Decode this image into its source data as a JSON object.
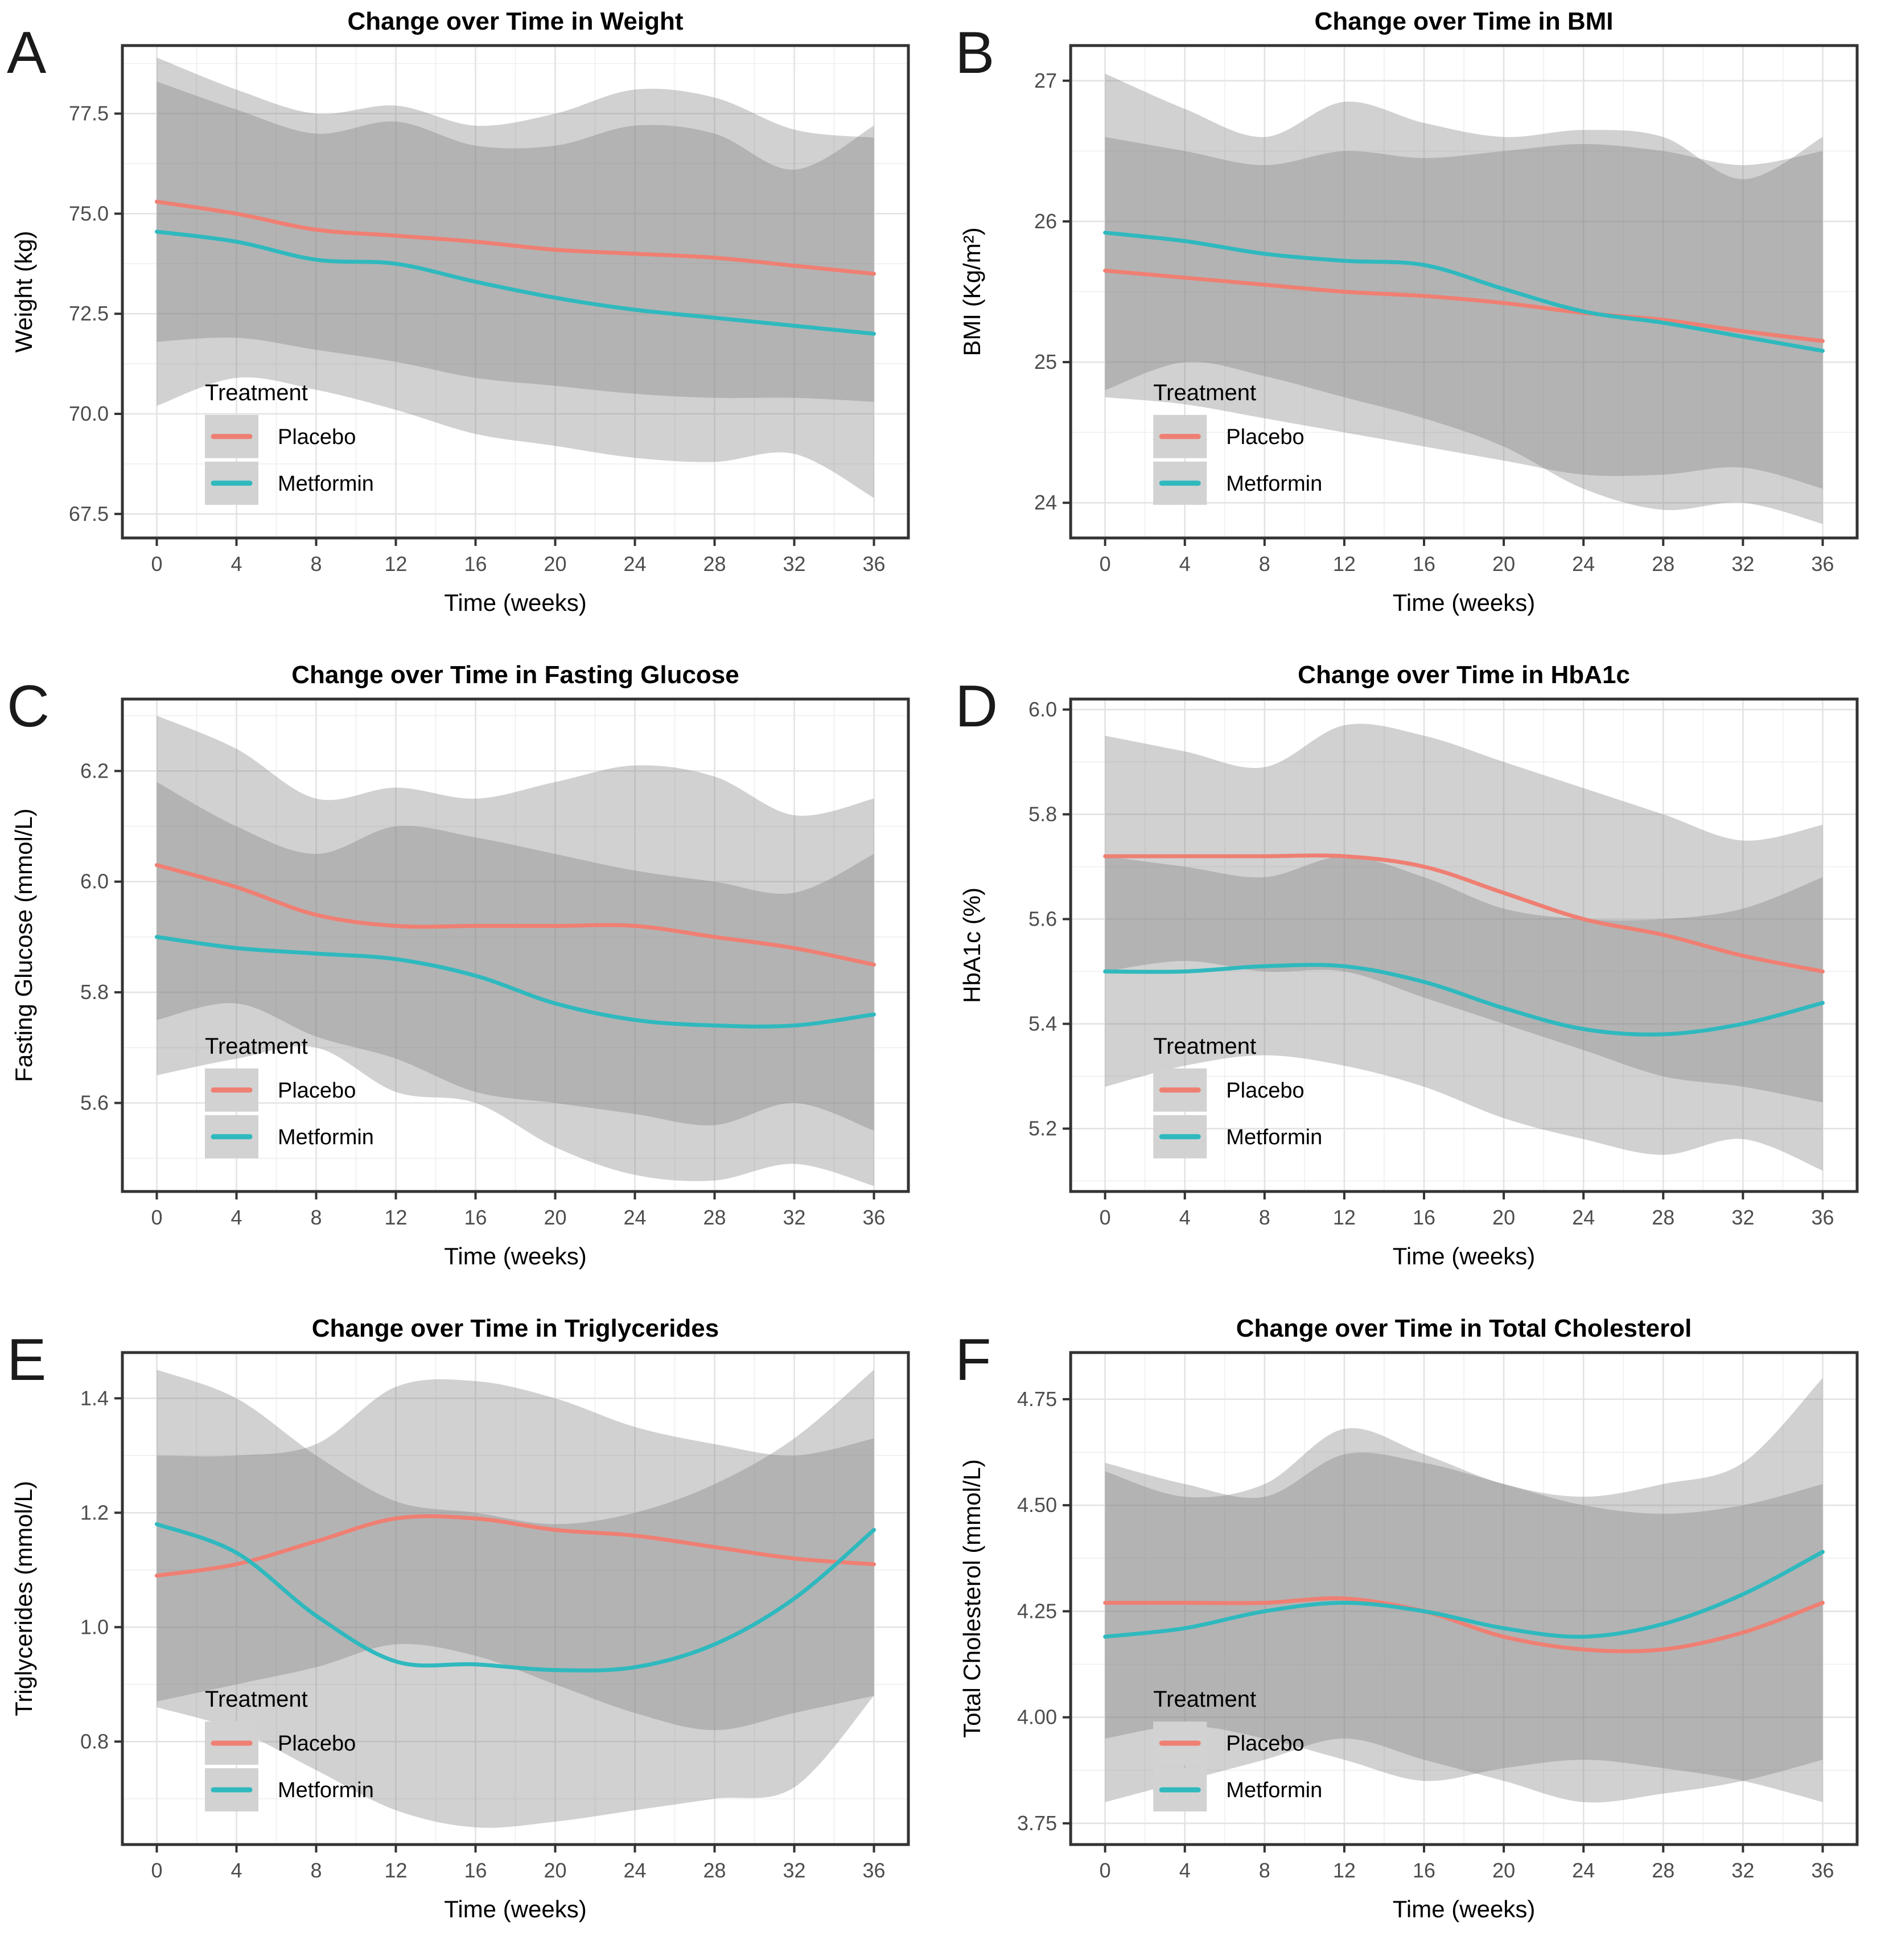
{
  "figure": {
    "type": "multi-panel-smooth-line-figure",
    "background": "#ffffff",
    "panel_border_color": "#333333",
    "grid_major_color": "#e3e3e3",
    "grid_minor_color": "#f0f0f0",
    "tick_label_color": "#4d4d4d",
    "ribbon_color": "#7f7f7f",
    "ribbon_opacity": 0.36
  },
  "legend": {
    "title": "Treatment",
    "key_fill": "#d2d2d2",
    "items": [
      {
        "label": "Placebo",
        "color": "#EF7F73"
      },
      {
        "label": "Metformin",
        "color": "#2FB9BE"
      }
    ]
  },
  "chart_data": [
    {
      "letter": "A",
      "type": "line",
      "title": "Change over Time in Weight",
      "xlabel": "Time (weeks)",
      "ylabel": "Weight (kg)",
      "x": [
        0,
        4,
        8,
        12,
        16,
        20,
        24,
        28,
        32,
        36
      ],
      "xtick_labels": [
        "0",
        "4",
        "8",
        "12",
        "16",
        "20",
        "24",
        "28",
        "32",
        "36"
      ],
      "ylim": [
        66.9,
        79.2
      ],
      "yticks": [
        67.5,
        70.0,
        72.5,
        75.0,
        77.5
      ],
      "ytick_labels": [
        "67.5",
        "70.0",
        "72.5",
        "75.0",
        "77.5"
      ],
      "legend_title": "Treatment",
      "series": [
        {
          "name": "Placebo",
          "color": "#EF7F73",
          "values": [
            75.3,
            75.0,
            74.6,
            74.45,
            74.3,
            74.1,
            74.0,
            73.9,
            73.7,
            73.5
          ],
          "lo": [
            71.8,
            71.9,
            71.6,
            71.3,
            70.9,
            70.7,
            70.5,
            70.4,
            70.4,
            70.3
          ],
          "hi": [
            78.9,
            78.1,
            77.5,
            77.7,
            77.2,
            77.5,
            78.1,
            77.9,
            77.1,
            76.9
          ]
        },
        {
          "name": "Metformin",
          "color": "#2FB9BE",
          "values": [
            74.55,
            74.3,
            73.85,
            73.75,
            73.3,
            72.9,
            72.6,
            72.4,
            72.2,
            72.0
          ],
          "lo": [
            70.2,
            70.9,
            70.6,
            70.1,
            69.5,
            69.2,
            68.9,
            68.8,
            69.0,
            67.9
          ],
          "hi": [
            78.3,
            77.6,
            77.0,
            77.3,
            76.7,
            76.7,
            77.2,
            77.0,
            76.1,
            77.2
          ]
        }
      ]
    },
    {
      "letter": "B",
      "type": "line",
      "title": "Change over Time in BMI",
      "xlabel": "Time (weeks)",
      "ylabel": "BMI (Kg/m²)",
      "x": [
        0,
        4,
        8,
        12,
        16,
        20,
        24,
        28,
        32,
        36
      ],
      "xtick_labels": [
        "0",
        "4",
        "8",
        "12",
        "16",
        "20",
        "24",
        "28",
        "32",
        "36"
      ],
      "ylim": [
        23.75,
        27.25
      ],
      "yticks": [
        24,
        25,
        26,
        27
      ],
      "ytick_labels": [
        "24",
        "25",
        "26",
        "27"
      ],
      "legend_title": "Treatment",
      "series": [
        {
          "name": "Placebo",
          "color": "#EF7F73",
          "values": [
            25.65,
            25.6,
            25.55,
            25.5,
            25.47,
            25.42,
            25.35,
            25.3,
            25.22,
            25.15
          ],
          "lo": [
            24.75,
            24.7,
            24.6,
            24.5,
            24.4,
            24.3,
            24.2,
            24.2,
            24.25,
            24.1
          ],
          "hi": [
            26.6,
            26.5,
            26.4,
            26.5,
            26.45,
            26.5,
            26.55,
            26.5,
            26.4,
            26.5
          ]
        },
        {
          "name": "Metformin",
          "color": "#2FB9BE",
          "values": [
            25.92,
            25.86,
            25.77,
            25.72,
            25.69,
            25.52,
            25.36,
            25.28,
            25.18,
            25.08
          ],
          "lo": [
            24.8,
            25.0,
            24.9,
            24.75,
            24.6,
            24.4,
            24.1,
            23.95,
            24.0,
            23.85
          ],
          "hi": [
            27.05,
            26.8,
            26.6,
            26.85,
            26.7,
            26.6,
            26.65,
            26.6,
            26.3,
            26.6
          ]
        }
      ]
    },
    {
      "letter": "C",
      "type": "line",
      "title": "Change over Time in Fasting Glucose",
      "xlabel": "Time (weeks)",
      "ylabel": "Fasting Glucose (mmol/L)",
      "x": [
        0,
        4,
        8,
        12,
        16,
        20,
        24,
        28,
        32,
        36
      ],
      "xtick_labels": [
        "0",
        "4",
        "8",
        "12",
        "16",
        "20",
        "24",
        "28",
        "32",
        "36"
      ],
      "ylim": [
        5.44,
        6.33
      ],
      "yticks": [
        5.6,
        5.8,
        6.0,
        6.2
      ],
      "ytick_labels": [
        "5.6",
        "5.8",
        "6.0",
        "6.2"
      ],
      "legend_title": "Treatment",
      "series": [
        {
          "name": "Placebo",
          "color": "#EF7F73",
          "values": [
            6.03,
            5.99,
            5.94,
            5.92,
            5.92,
            5.92,
            5.92,
            5.9,
            5.88,
            5.85
          ],
          "lo": [
            5.75,
            5.78,
            5.72,
            5.68,
            5.62,
            5.6,
            5.58,
            5.56,
            5.6,
            5.55
          ],
          "hi": [
            6.3,
            6.24,
            6.15,
            6.17,
            6.15,
            6.18,
            6.21,
            6.19,
            6.12,
            6.15
          ]
        },
        {
          "name": "Metformin",
          "color": "#2FB9BE",
          "values": [
            5.9,
            5.88,
            5.87,
            5.86,
            5.83,
            5.78,
            5.75,
            5.74,
            5.74,
            5.76
          ],
          "lo": [
            5.65,
            5.68,
            5.7,
            5.62,
            5.6,
            5.52,
            5.47,
            5.46,
            5.49,
            5.45
          ],
          "hi": [
            6.18,
            6.1,
            6.05,
            6.1,
            6.08,
            6.05,
            6.02,
            6.0,
            5.98,
            6.05
          ]
        }
      ]
    },
    {
      "letter": "D",
      "type": "line",
      "title": "Change over Time in HbA1c",
      "xlabel": "Time (weeks)",
      "ylabel": "HbA1c (%)",
      "x": [
        0,
        4,
        8,
        12,
        16,
        20,
        24,
        28,
        32,
        36
      ],
      "xtick_labels": [
        "0",
        "4",
        "8",
        "12",
        "16",
        "20",
        "24",
        "28",
        "32",
        "36"
      ],
      "ylim": [
        5.08,
        6.02
      ],
      "yticks": [
        5.2,
        5.4,
        5.6,
        5.8,
        6.0
      ],
      "ytick_labels": [
        "5.2",
        "5.4",
        "5.6",
        "5.8",
        "6.0"
      ],
      "legend_title": "Treatment",
      "series": [
        {
          "name": "Placebo",
          "color": "#EF7F73",
          "values": [
            5.72,
            5.72,
            5.72,
            5.72,
            5.7,
            5.65,
            5.6,
            5.57,
            5.53,
            5.5
          ],
          "lo": [
            5.5,
            5.52,
            5.5,
            5.5,
            5.45,
            5.4,
            5.35,
            5.3,
            5.28,
            5.25
          ],
          "hi": [
            5.95,
            5.92,
            5.89,
            5.97,
            5.95,
            5.9,
            5.85,
            5.8,
            5.75,
            5.78
          ]
        },
        {
          "name": "Metformin",
          "color": "#2FB9BE",
          "values": [
            5.5,
            5.5,
            5.51,
            5.51,
            5.48,
            5.43,
            5.39,
            5.38,
            5.4,
            5.44
          ],
          "lo": [
            5.28,
            5.32,
            5.34,
            5.32,
            5.28,
            5.22,
            5.18,
            5.15,
            5.18,
            5.12
          ],
          "hi": [
            5.72,
            5.7,
            5.68,
            5.72,
            5.68,
            5.62,
            5.6,
            5.6,
            5.62,
            5.68
          ]
        }
      ]
    },
    {
      "letter": "E",
      "type": "line",
      "title": "Change over Time in Triglycerides",
      "xlabel": "Time (weeks)",
      "ylabel": "Triglycerides (mmol/L)",
      "x": [
        0,
        4,
        8,
        12,
        16,
        20,
        24,
        28,
        32,
        36
      ],
      "xtick_labels": [
        "0",
        "4",
        "8",
        "12",
        "16",
        "20",
        "24",
        "28",
        "32",
        "36"
      ],
      "ylim": [
        0.62,
        1.48
      ],
      "yticks": [
        0.8,
        1.0,
        1.2,
        1.4
      ],
      "ytick_labels": [
        "0.8",
        "1.0",
        "1.2",
        "1.4"
      ],
      "legend_title": "Treatment",
      "series": [
        {
          "name": "Placebo",
          "color": "#EF7F73",
          "values": [
            1.09,
            1.11,
            1.15,
            1.19,
            1.19,
            1.17,
            1.16,
            1.14,
            1.12,
            1.11
          ],
          "lo": [
            0.87,
            0.9,
            0.93,
            0.97,
            0.95,
            0.9,
            0.85,
            0.82,
            0.85,
            0.88
          ],
          "hi": [
            1.3,
            1.3,
            1.32,
            1.42,
            1.43,
            1.4,
            1.35,
            1.32,
            1.3,
            1.33
          ]
        },
        {
          "name": "Metformin",
          "color": "#2FB9BE",
          "values": [
            1.18,
            1.13,
            1.02,
            0.94,
            0.935,
            0.925,
            0.93,
            0.97,
            1.05,
            1.17
          ],
          "lo": [
            0.86,
            0.82,
            0.75,
            0.68,
            0.65,
            0.66,
            0.68,
            0.7,
            0.72,
            0.88
          ],
          "hi": [
            1.45,
            1.4,
            1.3,
            1.22,
            1.2,
            1.18,
            1.2,
            1.25,
            1.33,
            1.45
          ]
        }
      ]
    },
    {
      "letter": "F",
      "type": "line",
      "title": "Change over Time in Total Cholesterol",
      "xlabel": "Time (weeks)",
      "ylabel": "Total Cholesterol (mmol/L)",
      "x": [
        0,
        4,
        8,
        12,
        16,
        20,
        24,
        28,
        32,
        36
      ],
      "xtick_labels": [
        "0",
        "4",
        "8",
        "12",
        "16",
        "20",
        "24",
        "28",
        "32",
        "36"
      ],
      "ylim": [
        3.7,
        4.86
      ],
      "yticks": [
        3.75,
        4.0,
        4.25,
        4.5,
        4.75
      ],
      "ytick_labels": [
        "3.75",
        "4.00",
        "4.25",
        "4.50",
        "4.75"
      ],
      "legend_title": "Treatment",
      "series": [
        {
          "name": "Placebo",
          "color": "#EF7F73",
          "values": [
            4.27,
            4.27,
            4.27,
            4.28,
            4.25,
            4.19,
            4.16,
            4.16,
            4.2,
            4.27
          ],
          "lo": [
            3.95,
            3.98,
            3.95,
            3.9,
            3.85,
            3.88,
            3.9,
            3.88,
            3.85,
            3.8
          ],
          "hi": [
            4.6,
            4.55,
            4.52,
            4.62,
            4.6,
            4.55,
            4.5,
            4.48,
            4.5,
            4.55
          ]
        },
        {
          "name": "Metformin",
          "color": "#2FB9BE",
          "values": [
            4.19,
            4.21,
            4.25,
            4.27,
            4.25,
            4.21,
            4.19,
            4.22,
            4.29,
            4.39
          ],
          "lo": [
            3.8,
            3.85,
            3.9,
            3.95,
            3.9,
            3.85,
            3.8,
            3.82,
            3.85,
            3.9
          ],
          "hi": [
            4.58,
            4.52,
            4.55,
            4.68,
            4.62,
            4.55,
            4.52,
            4.55,
            4.6,
            4.8
          ]
        }
      ]
    }
  ]
}
